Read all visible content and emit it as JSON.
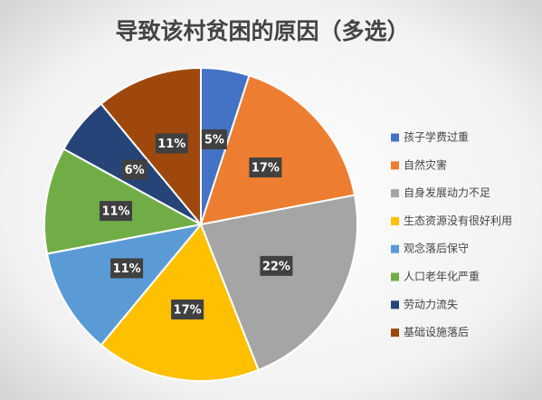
{
  "chart_data": {
    "type": "pie",
    "title": "导致该村贫困的原因（多选）",
    "categories": [
      "孩子学费过重",
      "自然灾害",
      "自身发展动力不足",
      "生态资源没有很好利用",
      "观念落后保守",
      "人口老年化严重",
      "劳动力流失",
      "基础设施落后"
    ],
    "values": [
      5,
      17,
      22,
      17,
      11,
      11,
      6,
      11
    ],
    "value_labels": [
      "5%",
      "17%",
      "22%",
      "17%",
      "11%",
      "11%",
      "6%",
      "11%"
    ],
    "colors": [
      "#4472c4",
      "#ed7d31",
      "#a5a5a5",
      "#ffc000",
      "#5b9bd5",
      "#70ad47",
      "#264478",
      "#9e480e"
    ],
    "legend": "right"
  }
}
